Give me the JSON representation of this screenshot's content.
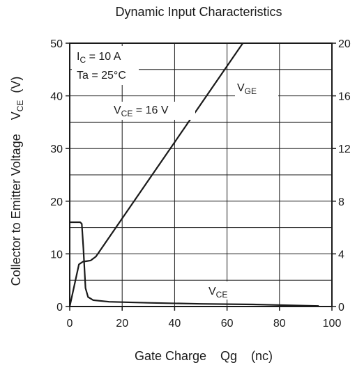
{
  "chart_data": {
    "type": "line",
    "title": "Dynamic Input Characteristics",
    "xlabel": "Gate Charge    Qg    (nc)",
    "ylabel_left": "Collector to Emitter Voltage",
    "ylabel_left_symbol": "V",
    "ylabel_left_symbol_sub": "CE",
    "ylabel_left_unit": "(V)",
    "xlim": [
      0,
      100
    ],
    "ylim_left": [
      0,
      50
    ],
    "ylim_right": [
      0,
      20
    ],
    "x_ticks": [
      "0",
      "20",
      "40",
      "60",
      "80",
      "100"
    ],
    "y_left_ticks": [
      "0",
      "10",
      "20",
      "30",
      "40",
      "50"
    ],
    "y_right_ticks": [
      "0",
      "4",
      "8",
      "12",
      "16",
      "20"
    ],
    "grid": true,
    "conditions": [
      {
        "main": "I",
        "sub": "C",
        "rest": " = 10 A"
      },
      {
        "main": "Ta = 25°C",
        "sub": "",
        "rest": ""
      },
      {
        "main": "V",
        "sub": "CE",
        "rest": " = 16 V"
      }
    ],
    "series": [
      {
        "name": "V_GE",
        "label_main": "V",
        "label_sub": "GE",
        "axis": "right",
        "color": "#1a1a1a",
        "x": [
          0,
          3.5,
          5,
          8,
          10,
          66
        ],
        "y": [
          0,
          3.2,
          3.4,
          3.5,
          3.8,
          20
        ]
      },
      {
        "name": "V_CE",
        "label_main": "V",
        "label_sub": "CE",
        "axis": "left",
        "color": "#1a1a1a",
        "x": [
          0,
          4,
          4.6,
          5.2,
          6,
          7,
          9,
          15,
          30,
          50,
          70,
          95
        ],
        "y": [
          16,
          16,
          15.7,
          11,
          3.5,
          1.8,
          1.2,
          0.9,
          0.7,
          0.5,
          0.4,
          0.1
        ]
      }
    ]
  }
}
